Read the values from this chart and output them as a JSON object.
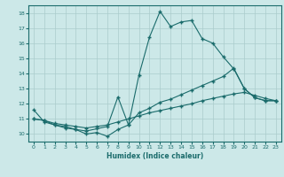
{
  "xlabel": "Humidex (Indice chaleur)",
  "bg_color": "#cce8e8",
  "grid_color": "#aacccc",
  "line_color": "#1a6b6b",
  "line1": {
    "x": [
      0,
      1,
      2,
      3,
      4,
      5,
      6,
      7,
      8,
      9,
      10,
      11,
      12,
      13,
      14,
      15,
      16,
      17,
      18,
      19,
      20,
      21,
      22,
      23
    ],
    "y": [
      11.6,
      10.8,
      10.6,
      10.4,
      10.3,
      10.0,
      10.1,
      9.85,
      10.3,
      10.6,
      13.9,
      16.4,
      18.1,
      17.1,
      17.4,
      17.5,
      16.3,
      16.0,
      15.1,
      14.3,
      13.0,
      12.4,
      12.2,
      12.2
    ]
  },
  "line2": {
    "x": [
      0,
      1,
      2,
      3,
      4,
      5,
      6,
      7,
      8,
      9,
      10,
      11,
      12,
      13,
      14,
      15,
      16,
      17,
      18,
      19,
      20,
      21,
      22,
      23
    ],
    "y": [
      11.0,
      10.9,
      10.6,
      10.5,
      10.3,
      10.2,
      10.35,
      10.5,
      12.45,
      10.6,
      11.4,
      11.7,
      12.1,
      12.3,
      12.6,
      12.9,
      13.2,
      13.5,
      13.8,
      14.35,
      13.0,
      12.4,
      12.2,
      12.2
    ]
  },
  "line3": {
    "x": [
      0,
      1,
      2,
      3,
      4,
      5,
      6,
      7,
      8,
      9,
      10,
      11,
      12,
      13,
      14,
      15,
      16,
      17,
      18,
      19,
      20,
      21,
      22,
      23
    ],
    "y": [
      11.0,
      10.9,
      10.7,
      10.6,
      10.5,
      10.4,
      10.5,
      10.6,
      10.8,
      11.0,
      11.2,
      11.4,
      11.55,
      11.7,
      11.85,
      12.0,
      12.2,
      12.35,
      12.5,
      12.65,
      12.75,
      12.55,
      12.35,
      12.2
    ]
  },
  "xlim": [
    -0.5,
    23.5
  ],
  "ylim": [
    9.5,
    18.5
  ],
  "yticks": [
    10,
    11,
    12,
    13,
    14,
    15,
    16,
    17,
    18
  ],
  "xticks": [
    0,
    1,
    2,
    3,
    4,
    5,
    6,
    7,
    8,
    9,
    10,
    11,
    12,
    13,
    14,
    15,
    16,
    17,
    18,
    19,
    20,
    21,
    22,
    23
  ]
}
